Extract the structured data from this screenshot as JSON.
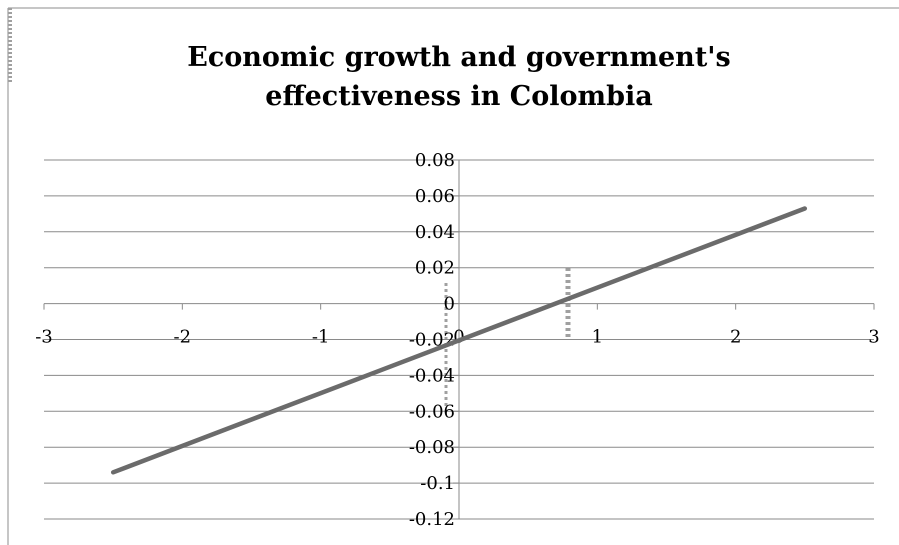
{
  "chart_data": {
    "type": "line",
    "title": "Economic growth and government's effectiveness in Colombia",
    "title_lines": [
      "Economic growth and government's",
      "effectiveness in Colombia"
    ],
    "xlabel": "",
    "ylabel": "",
    "xlim": [
      -3,
      3
    ],
    "ylim": [
      -0.12,
      0.08
    ],
    "x_ticks": [
      -3,
      -2,
      -1,
      0,
      1,
      2,
      3
    ],
    "x_tick_labels": [
      "-3",
      "-2",
      "-1",
      "0",
      "1",
      "2",
      "3"
    ],
    "y_ticks": [
      0.08,
      0.06,
      0.04,
      0.02,
      0,
      -0.02,
      -0.04,
      -0.06,
      -0.08,
      -0.1,
      -0.12
    ],
    "y_tick_labels": [
      "0.08",
      "0.06",
      "0.04",
      "0.02",
      "0",
      "-0.02",
      "-0.04",
      "-0.06",
      "-0.08",
      "-0.1",
      "-0.12"
    ],
    "grid": true,
    "legend": "none",
    "series": [
      {
        "x": [
          -2.5,
          2.5
        ],
        "y": [
          -0.094,
          0.053
        ],
        "color": "#6b6b6b"
      }
    ]
  }
}
